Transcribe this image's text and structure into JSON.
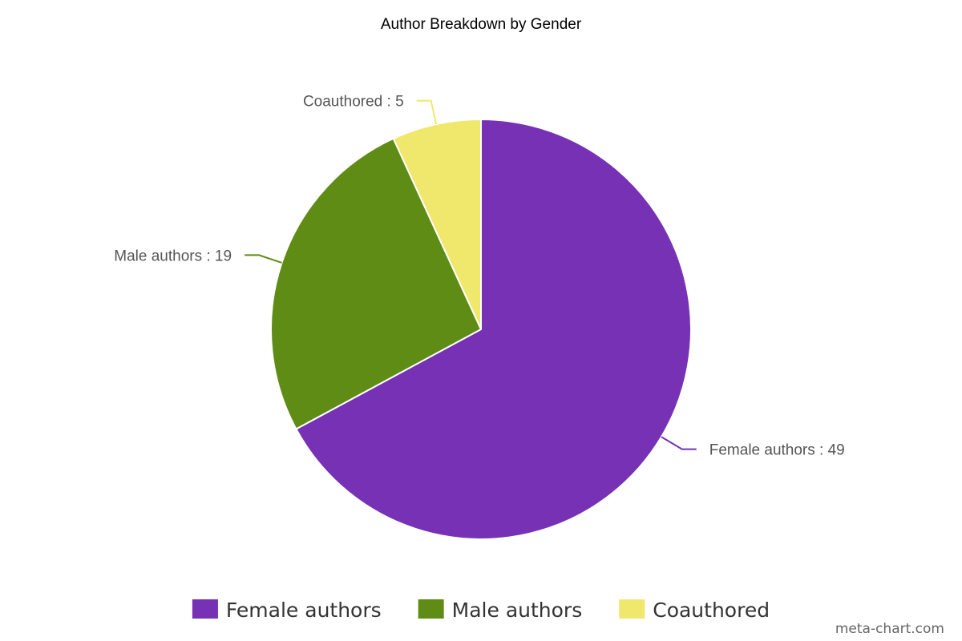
{
  "chart_data": {
    "type": "pie",
    "title": "Author Breakdown by Gender",
    "slices": [
      {
        "label": "Female authors",
        "value": 49,
        "color": "#7631b4"
      },
      {
        "label": "Male authors",
        "value": 19,
        "color": "#5f8c15"
      },
      {
        "label": "Coauthored",
        "value": 5,
        "color": "#efe86d"
      }
    ],
    "label_separator": " : ",
    "legend": {
      "placement": "bottom"
    }
  },
  "watermark": "meta-chart.com"
}
